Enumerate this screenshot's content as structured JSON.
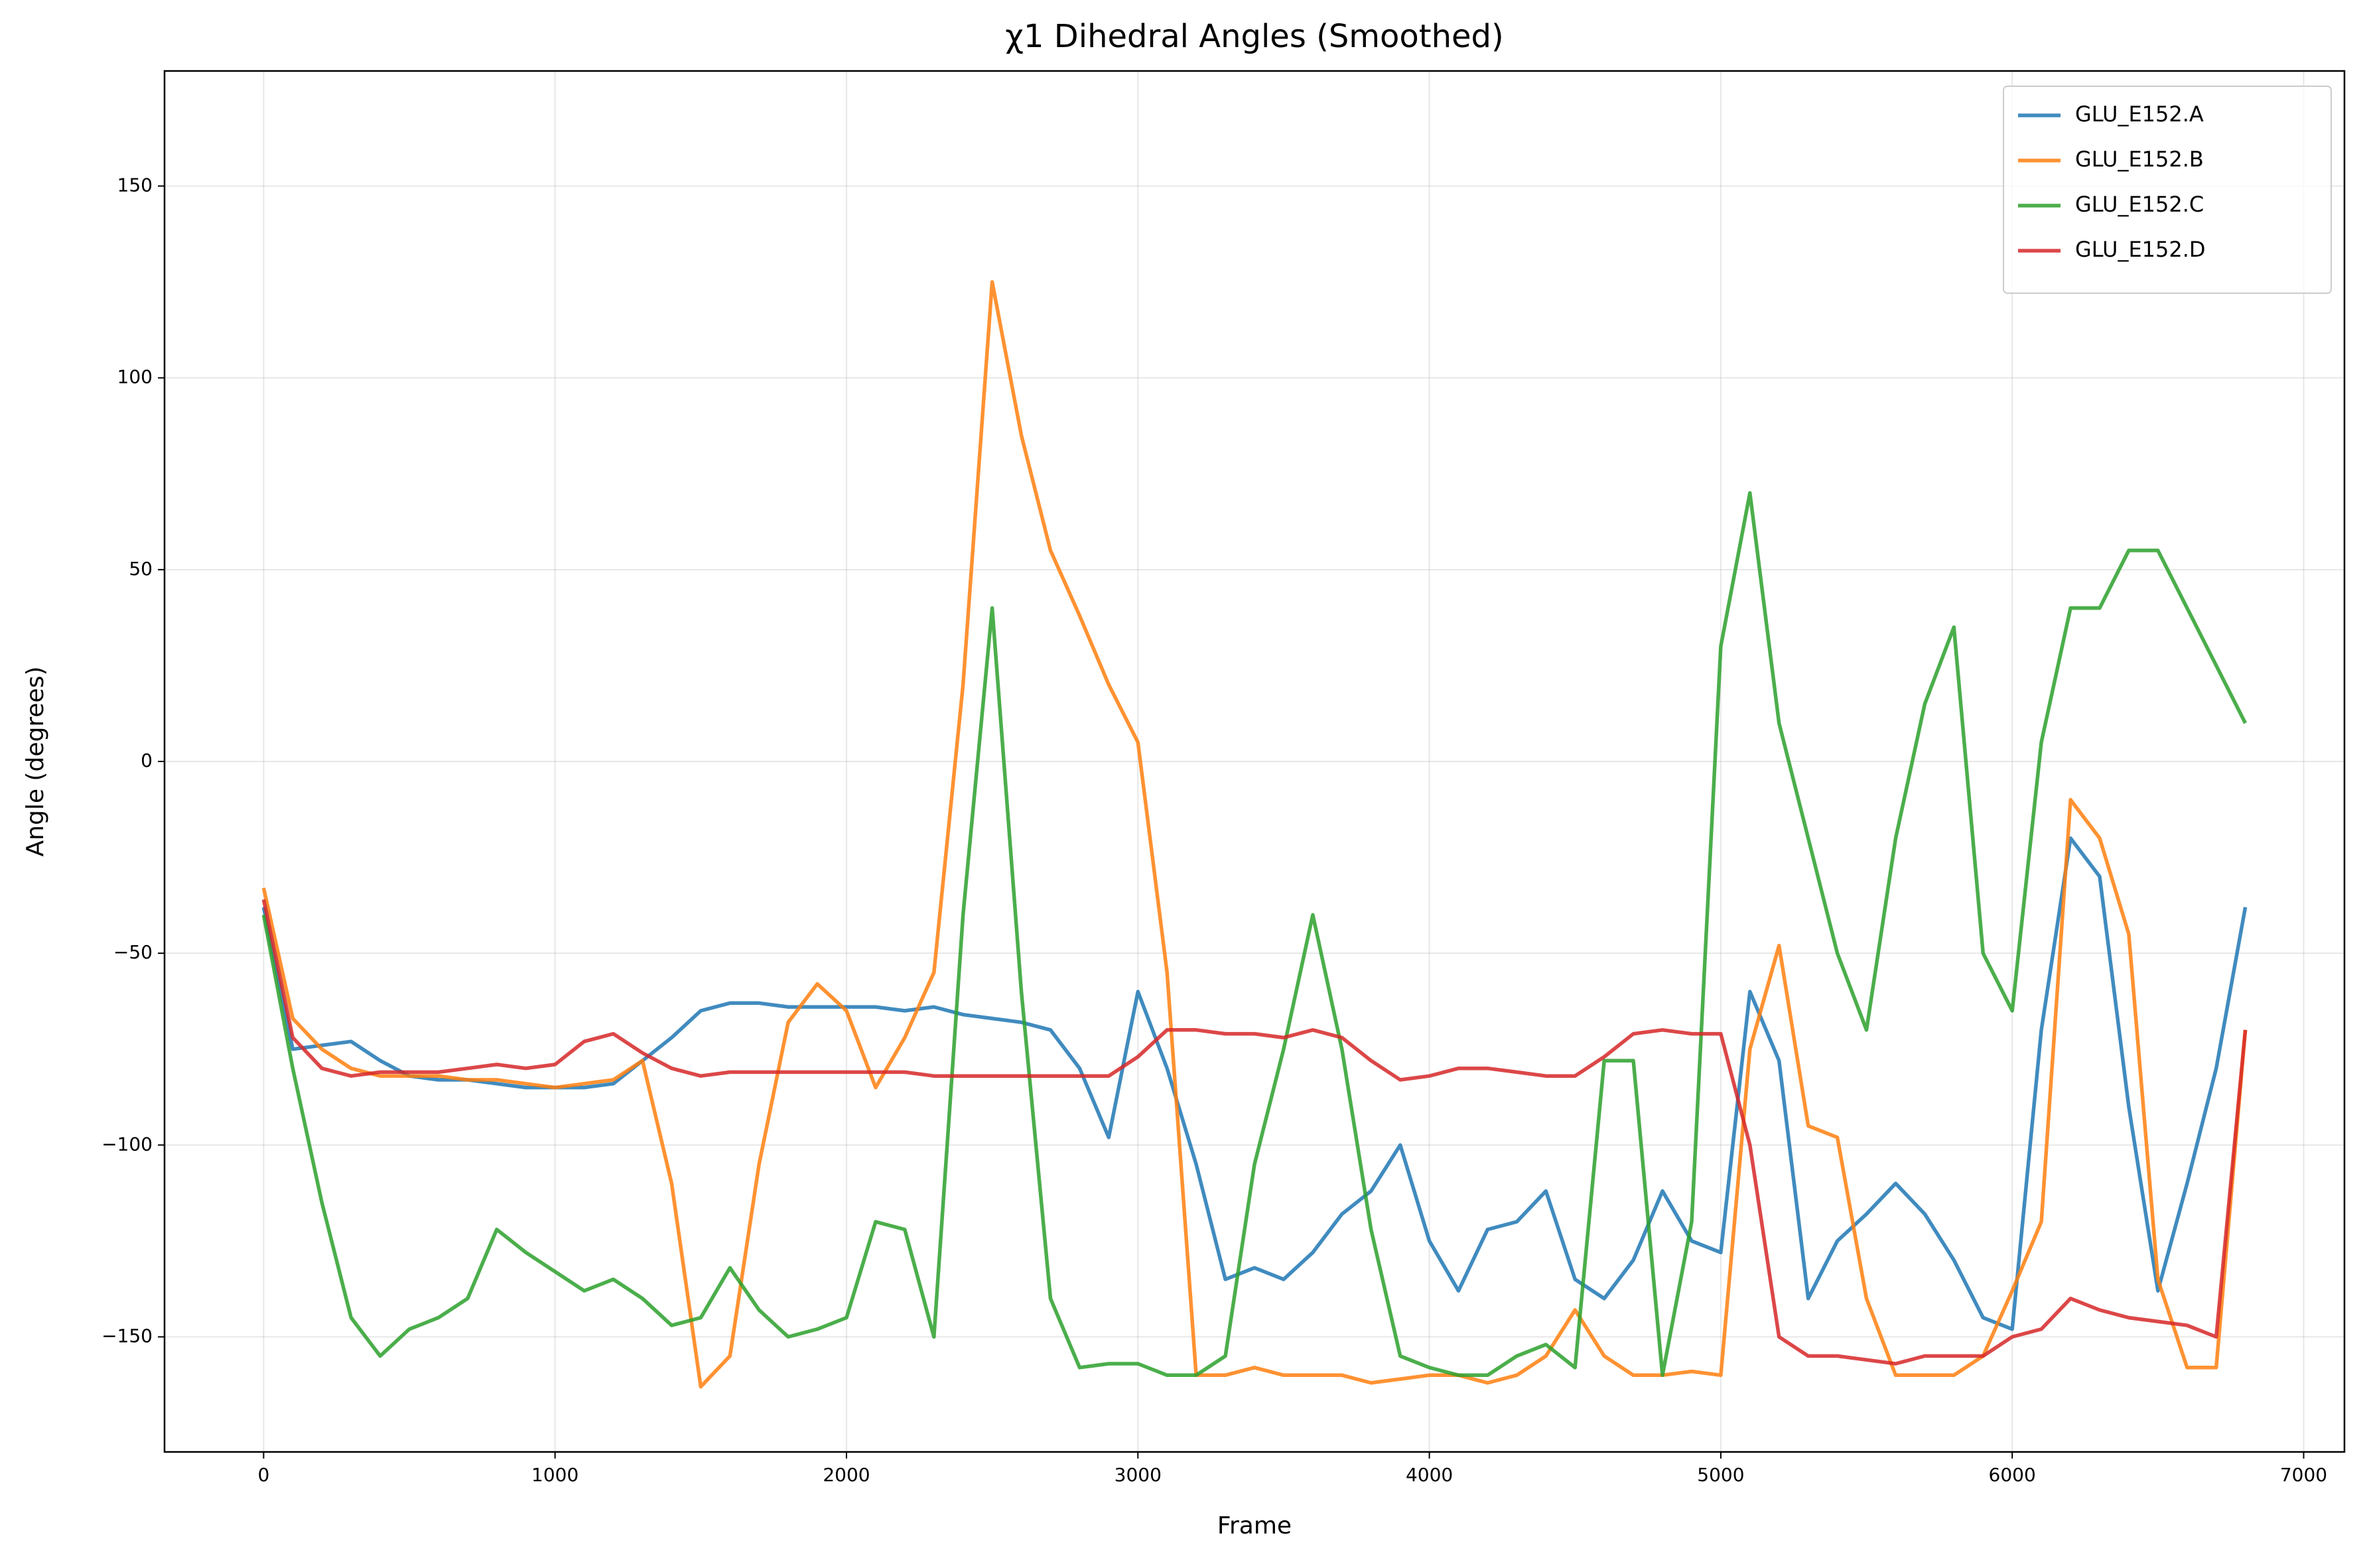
{
  "chart_data": {
    "type": "line",
    "title": "χ1 Dihedral Angles (Smoothed)",
    "xlabel": "Frame",
    "ylabel": "Angle (degrees)",
    "x": [
      0,
      100,
      200,
      300,
      400,
      500,
      600,
      700,
      800,
      900,
      1000,
      1100,
      1200,
      1300,
      1400,
      1500,
      1600,
      1700,
      1800,
      1900,
      2000,
      2100,
      2200,
      2300,
      2400,
      2500,
      2600,
      2700,
      2800,
      2900,
      3000,
      3100,
      3200,
      3300,
      3400,
      3500,
      3600,
      3700,
      3800,
      3900,
      4000,
      4100,
      4200,
      4300,
      4400,
      4500,
      4600,
      4700,
      4800,
      4900,
      5000,
      5100,
      5200,
      5300,
      5400,
      5500,
      5600,
      5700,
      5800,
      5900,
      6000,
      6100,
      6200,
      6300,
      6400,
      6500,
      6600,
      6700,
      6800
    ],
    "series": [
      {
        "name": "GLU_E152.A",
        "color": "#1f77b4",
        "values": [
          -38,
          -75,
          -74,
          -73,
          -78,
          -82,
          -83,
          -83,
          -84,
          -85,
          -85,
          -85,
          -84,
          -78,
          -72,
          -65,
          -63,
          -63,
          -64,
          -64,
          -64,
          -64,
          -65,
          -64,
          -66,
          -67,
          -68,
          -70,
          -80,
          -98,
          -60,
          -80,
          -105,
          -135,
          -132,
          -135,
          -128,
          -118,
          -112,
          -100,
          -125,
          -138,
          -122,
          -120,
          -112,
          -135,
          -140,
          -130,
          -112,
          -125,
          -128,
          -60,
          -78,
          -140,
          -125,
          -118,
          -110,
          -118,
          -130,
          -145,
          -148,
          -70,
          -20,
          -30,
          -90,
          -138,
          -110,
          -80,
          -38
        ]
      },
      {
        "name": "GLU_E152.B",
        "color": "#ff7f0e",
        "values": [
          -33,
          -67,
          -75,
          -80,
          -82,
          -82,
          -82,
          -83,
          -83,
          -84,
          -85,
          -84,
          -83,
          -78,
          -110,
          -163,
          -155,
          -105,
          -68,
          -58,
          -65,
          -85,
          -72,
          -55,
          20,
          125,
          85,
          55,
          38,
          20,
          5,
          -55,
          -160,
          -160,
          -158,
          -160,
          -160,
          -160,
          -162,
          -161,
          -160,
          -160,
          -162,
          -160,
          -155,
          -143,
          -155,
          -160,
          -160,
          -159,
          -160,
          -75,
          -48,
          -95,
          -98,
          -140,
          -160,
          -160,
          -160,
          -155,
          -138,
          -120,
          -10,
          -20,
          -45,
          -135,
          -158,
          -158,
          -70
        ]
      },
      {
        "name": "GLU_E152.C",
        "color": "#2ca02c",
        "values": [
          -40,
          -80,
          -115,
          -145,
          -155,
          -148,
          -145,
          -140,
          -122,
          -128,
          -133,
          -138,
          -135,
          -140,
          -147,
          -145,
          -132,
          -143,
          -150,
          -148,
          -145,
          -120,
          -122,
          -150,
          -40,
          40,
          -60,
          -140,
          -158,
          -157,
          -157,
          -160,
          -160,
          -155,
          -105,
          -75,
          -40,
          -75,
          -122,
          -155,
          -158,
          -160,
          -160,
          -155,
          -152,
          -158,
          -78,
          -78,
          -160,
          -120,
          30,
          70,
          10,
          -20,
          -50,
          -70,
          -20,
          15,
          35,
          -50,
          -65,
          5,
          40,
          40,
          55,
          55,
          40,
          25,
          10
        ]
      },
      {
        "name": "GLU_E152.D",
        "color": "#d62728",
        "values": [
          -36,
          -72,
          -80,
          -82,
          -81,
          -81,
          -81,
          -80,
          -79,
          -80,
          -79,
          -73,
          -71,
          -76,
          -80,
          -82,
          -81,
          -81,
          -81,
          -81,
          -81,
          -81,
          -81,
          -82,
          -82,
          -82,
          -82,
          -82,
          -82,
          -82,
          -77,
          -70,
          -70,
          -71,
          -71,
          -72,
          -70,
          -72,
          -78,
          -83,
          -82,
          -80,
          -80,
          -81,
          -82,
          -82,
          -77,
          -71,
          -70,
          -71,
          -71,
          -100,
          -150,
          -155,
          -155,
          -156,
          -157,
          -155,
          -155,
          -155,
          -150,
          -148,
          -140,
          -143,
          -145,
          -146,
          -147,
          -150,
          -70
        ]
      }
    ],
    "xlim": [
      -340,
      7140
    ],
    "ylim": [
      -180,
      180
    ],
    "xticks": [
      0,
      1000,
      2000,
      3000,
      4000,
      5000,
      6000,
      7000
    ],
    "yticks": [
      {
        "value": -150,
        "label": "−150"
      },
      {
        "value": -100,
        "label": "−100"
      },
      {
        "value": -50,
        "label": "−50"
      },
      0,
      50,
      100,
      150
    ],
    "grid": true,
    "legend": "upper right"
  }
}
